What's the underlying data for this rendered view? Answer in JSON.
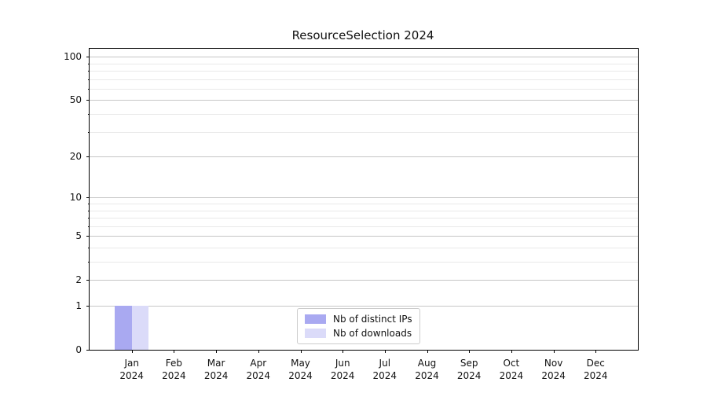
{
  "chart_data": {
    "type": "bar",
    "title": "ResourceSelection 2024",
    "categories": [
      "Jan",
      "Feb",
      "Mar",
      "Apr",
      "May",
      "Jun",
      "Jul",
      "Aug",
      "Sep",
      "Oct",
      "Nov",
      "Dec"
    ],
    "category_year_label": "2024",
    "series": [
      {
        "name": "Nb of distinct IPs",
        "color": "#a9a9f1",
        "values": [
          1,
          0,
          0,
          0,
          0,
          0,
          0,
          0,
          0,
          0,
          0,
          0
        ]
      },
      {
        "name": "Nb of downloads",
        "color": "#dbdbf9",
        "values": [
          1,
          0,
          0,
          0,
          0,
          0,
          0,
          0,
          0,
          0,
          0,
          0
        ]
      }
    ],
    "y_axis": {
      "scale": "log1p",
      "major_ticks": [
        0,
        1,
        2,
        5,
        10,
        20,
        50,
        100
      ],
      "minor_ticks": [
        3,
        4,
        6,
        7,
        8,
        9,
        30,
        40,
        60,
        70,
        80,
        90
      ],
      "ylim": [
        0,
        114
      ]
    },
    "x_axis": {
      "tick_label_line2": "2024"
    },
    "legend": {
      "position": "lower center"
    },
    "grid": "on",
    "colors": {
      "major_grid": "#c6c6c6",
      "minor_grid": "#e9e9e9",
      "spine": "#000000"
    }
  }
}
